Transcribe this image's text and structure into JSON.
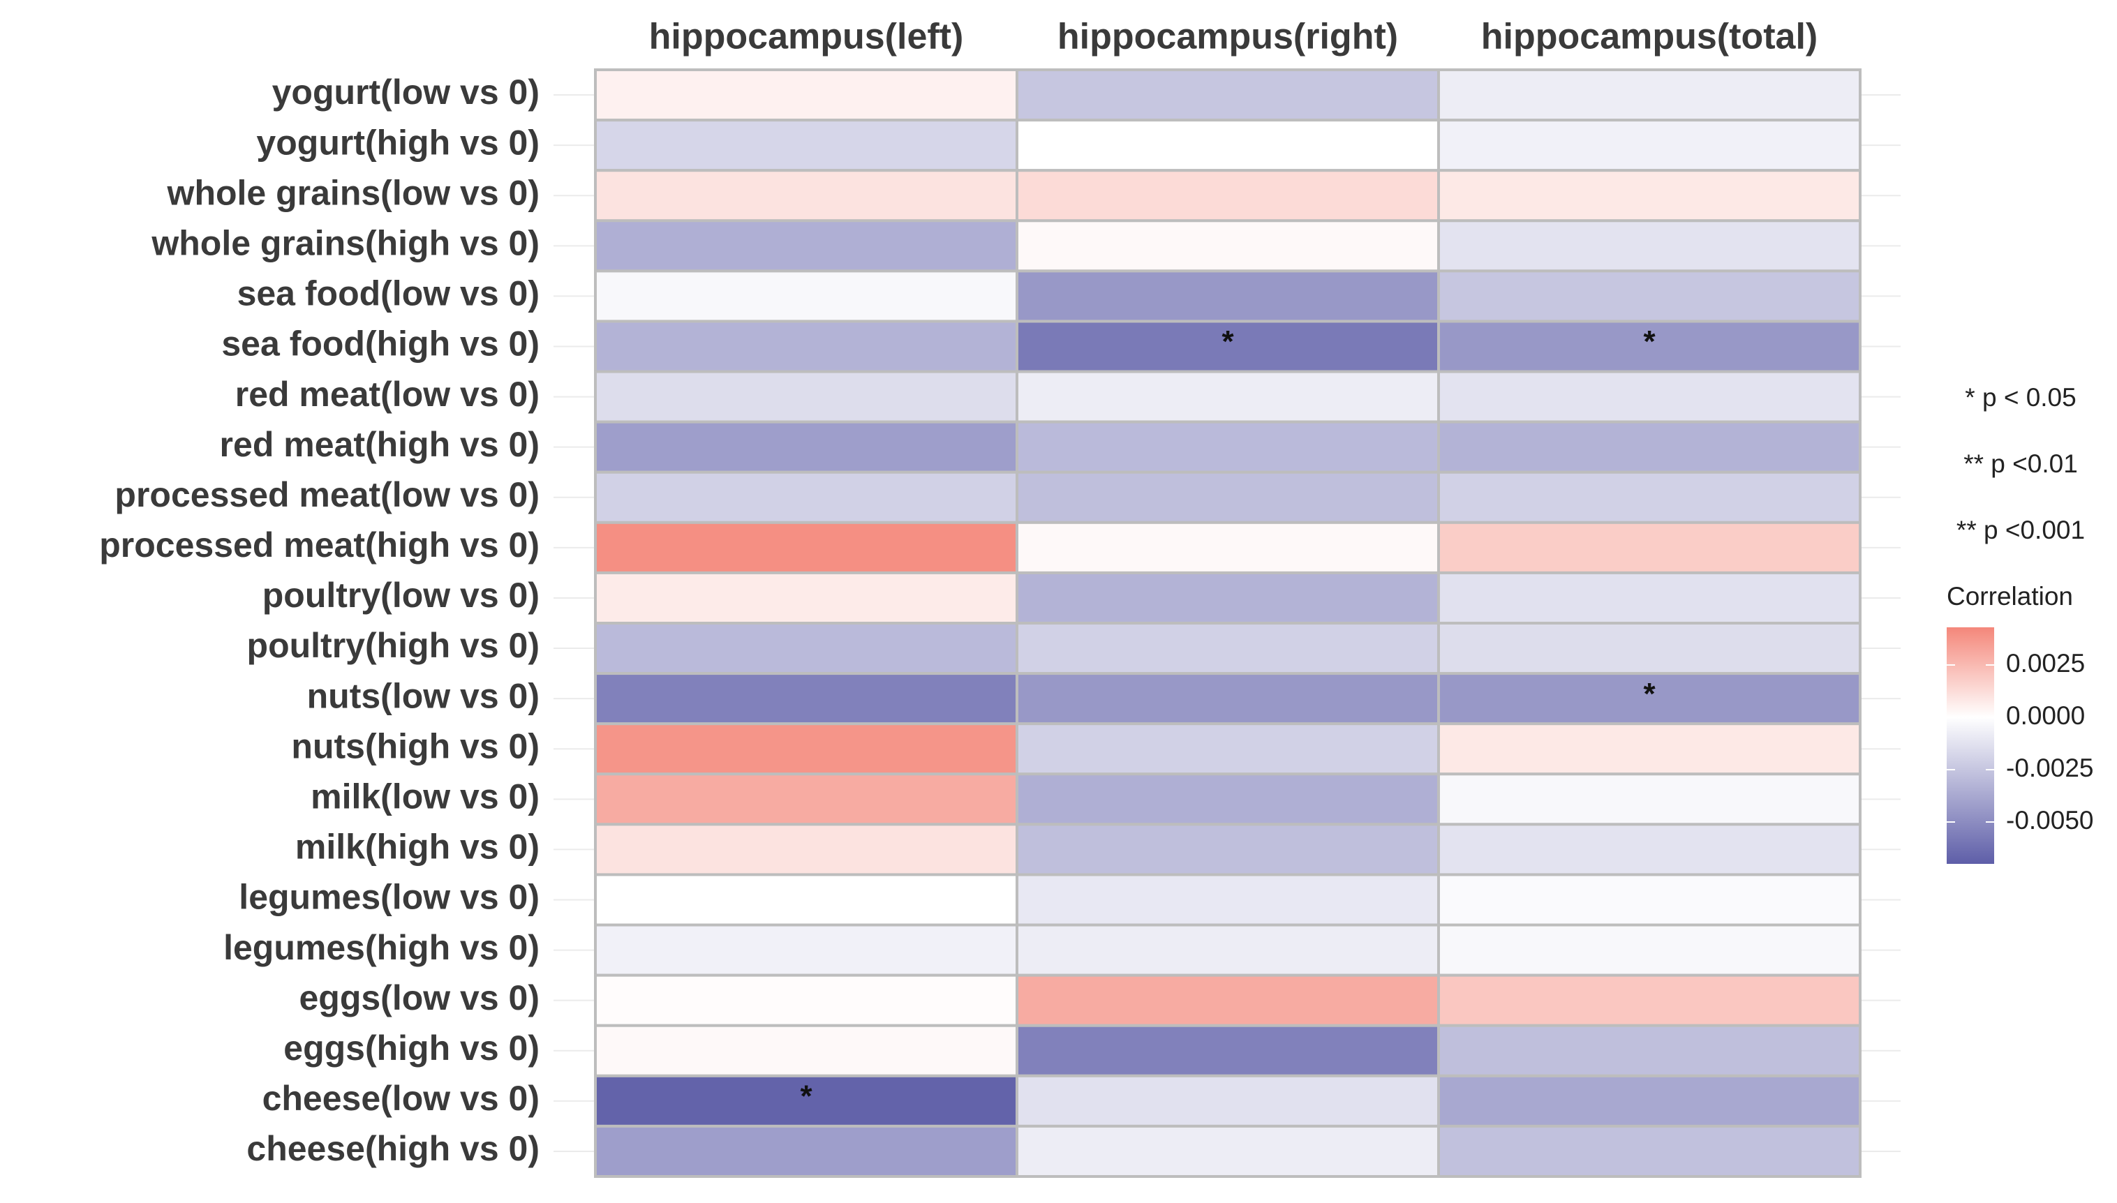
{
  "chart_data": {
    "type": "heatmap",
    "columns": [
      "hippocampus(left)",
      "hippocampus(right)",
      "hippocampus(total)"
    ],
    "rows": [
      "yogurt(low vs 0)",
      "yogurt(high vs 0)",
      "whole grains(low vs 0)",
      "whole grains(high vs 0)",
      "sea food(low vs 0)",
      "sea food(high vs 0)",
      "red meat(low vs 0)",
      "red meat(high vs 0)",
      "processed meat(low vs 0)",
      "processed meat(high vs 0)",
      "poultry(low vs 0)",
      "poultry(high vs 0)",
      "nuts(low vs 0)",
      "nuts(high vs 0)",
      "milk(low vs 0)",
      "milk(high vs 0)",
      "legumes(low vs 0)",
      "legumes(high vs 0)",
      "eggs(low vs 0)",
      "eggs(high vs 0)",
      "cheese(low vs 0)",
      "cheese(high vs 0)"
    ],
    "values": [
      [
        0.0005,
        -0.0025,
        -0.0008
      ],
      [
        -0.0018,
        0.0,
        -0.0006
      ],
      [
        0.001,
        0.0013,
        0.0008
      ],
      [
        -0.0035,
        0.0002,
        -0.0012
      ],
      [
        -0.0003,
        -0.0045,
        -0.0025
      ],
      [
        -0.0033,
        -0.0058,
        -0.0045
      ],
      [
        -0.0015,
        -0.0008,
        -0.0012
      ],
      [
        -0.0042,
        -0.003,
        -0.0033
      ],
      [
        -0.002,
        -0.0028,
        -0.002
      ],
      [
        0.004,
        0.0002,
        0.0018
      ],
      [
        0.0007,
        -0.0033,
        -0.0013
      ],
      [
        -0.003,
        -0.002,
        -0.0015
      ],
      [
        -0.0055,
        -0.0045,
        -0.0045
      ],
      [
        0.0038,
        -0.002,
        0.0008
      ],
      [
        0.003,
        -0.0035,
        -0.0003
      ],
      [
        0.001,
        -0.0028,
        -0.0012
      ],
      [
        0.0,
        -0.001,
        -0.0002
      ],
      [
        -0.0006,
        -0.0008,
        -0.0003
      ],
      [
        0.0001,
        0.003,
        0.002
      ],
      [
        0.0002,
        -0.0055,
        -0.0028
      ],
      [
        -0.0068,
        -0.0013,
        -0.0038
      ],
      [
        -0.0042,
        -0.0008,
        -0.0027
      ]
    ],
    "labels": [
      [
        null,
        null,
        null
      ],
      [
        null,
        null,
        null
      ],
      [
        null,
        null,
        null
      ],
      [
        null,
        null,
        null
      ],
      [
        null,
        null,
        null
      ],
      [
        null,
        "*",
        "*"
      ],
      [
        null,
        null,
        null
      ],
      [
        null,
        null,
        null
      ],
      [
        null,
        null,
        null
      ],
      [
        null,
        null,
        null
      ],
      [
        null,
        null,
        null
      ],
      [
        null,
        null,
        null
      ],
      [
        null,
        null,
        "*"
      ],
      [
        null,
        null,
        null
      ],
      [
        null,
        null,
        null
      ],
      [
        null,
        null,
        null
      ],
      [
        null,
        null,
        null
      ],
      [
        null,
        null,
        null
      ],
      [
        null,
        null,
        null
      ],
      [
        null,
        null,
        null
      ],
      [
        "*",
        null,
        null
      ],
      [
        null,
        null,
        null
      ]
    ],
    "significance_legend": [
      "* p < 0.05",
      "** p <0.01",
      "** p <0.001"
    ],
    "legend_title": "Correlation",
    "clim": [
      -0.007,
      0.0043
    ],
    "cticks": [
      0.0025,
      {
        "value": 0,
        "label": "0.0000"
      },
      -0.0025,
      {
        "value": -0.005,
        "label": "-0.0050"
      }
    ],
    "color_low": "#5e5ea8",
    "color_mid": "#ffffff",
    "color_high": "#f4877a"
  }
}
